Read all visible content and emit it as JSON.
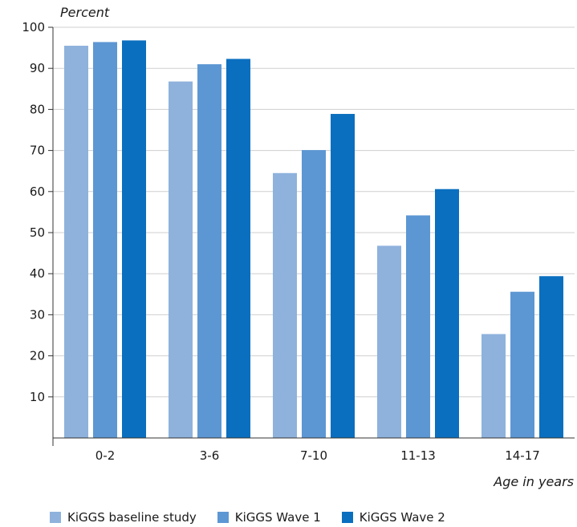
{
  "chart_data": {
    "type": "bar",
    "ylabel": "Percent",
    "xlabel": "Age in years",
    "ylim": [
      0,
      100
    ],
    "yticks": [
      10,
      20,
      30,
      40,
      50,
      60,
      70,
      80,
      90,
      100
    ],
    "categories": [
      "0-2",
      "3-6",
      "7-10",
      "11-13",
      "14-17"
    ],
    "series": [
      {
        "name": "KiGGS baseline study",
        "color": "#8eb2dc",
        "values": [
          95.5,
          86.8,
          64.5,
          46.8,
          25.3
        ]
      },
      {
        "name": "KiGGS Wave 1",
        "color": "#5c97d3",
        "values": [
          96.4,
          91.0,
          70.1,
          54.2,
          35.6
        ]
      },
      {
        "name": "KiGGS Wave 2",
        "color": "#0a6fbf",
        "values": [
          96.8,
          92.3,
          78.9,
          60.6,
          39.4
        ]
      }
    ],
    "legend_position": "bottom-left",
    "grid": true,
    "grid_axis": "y"
  }
}
